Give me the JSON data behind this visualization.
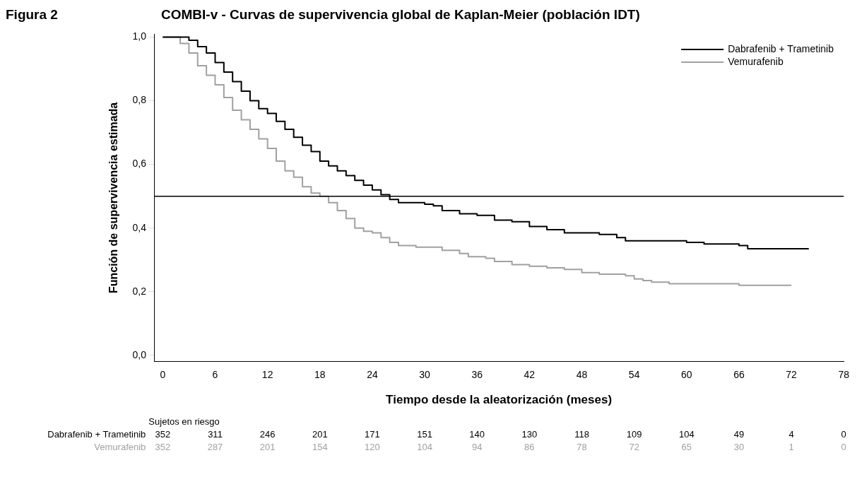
{
  "chart_data": {
    "type": "step",
    "title": "Figura 2",
    "subtitle": "COMBI-v - Curvas de supervivencia global de Kaplan-Meier (población IDT)",
    "xlabel": "Tiempo desde la aleatorización (meses)",
    "ylabel": "Función de supervivencia estimada",
    "xlim": [
      -1,
      78
    ],
    "xticks": [
      0,
      6,
      12,
      18,
      24,
      30,
      36,
      42,
      48,
      54,
      60,
      66,
      72,
      78
    ],
    "ylim": [
      -0.02,
      1.01
    ],
    "yticks": [
      {
        "value": 0,
        "label": "0,0"
      },
      {
        "value": 0.2,
        "label": "0,2"
      },
      {
        "value": 0.4,
        "label": "0,4"
      },
      {
        "value": 0.6,
        "label": "0,6"
      },
      {
        "value": 0.8,
        "label": "0,8"
      },
      {
        "value": 1,
        "label": "1,0"
      }
    ],
    "grid": false,
    "legend": "top right",
    "marker": "none",
    "line_style": "solid",
    "ref_lines": [
      {
        "axis": "y",
        "value": 0.5,
        "color": "#000000"
      }
    ],
    "series": [
      {
        "name": "Dabrafenib + Trametinib",
        "color": "#000000",
        "x": [
          0,
          3,
          4,
          5,
          6,
          7,
          8,
          9,
          10,
          11,
          12,
          13,
          14,
          15,
          16,
          17,
          18,
          19,
          20,
          21,
          22,
          23,
          24,
          25,
          26,
          27,
          30,
          31,
          32,
          34,
          36,
          38,
          40,
          42,
          44,
          46,
          50,
          52,
          53,
          60,
          62,
          66,
          67,
          74
        ],
        "values": [
          1,
          0.99,
          0.97,
          0.95,
          0.92,
          0.89,
          0.86,
          0.83,
          0.8,
          0.775,
          0.76,
          0.735,
          0.71,
          0.685,
          0.66,
          0.64,
          0.61,
          0.595,
          0.58,
          0.565,
          0.55,
          0.535,
          0.52,
          0.505,
          0.49,
          0.48,
          0.475,
          0.47,
          0.455,
          0.445,
          0.44,
          0.425,
          0.42,
          0.405,
          0.395,
          0.385,
          0.38,
          0.37,
          0.36,
          0.355,
          0.35,
          0.345,
          0.335,
          0.335
        ]
      },
      {
        "name": "Vemurafenib",
        "color": "#a0a0a0",
        "x": [
          0,
          2,
          3,
          4,
          5,
          6,
          7,
          8,
          9,
          10,
          11,
          12,
          13,
          14,
          15,
          16,
          17,
          18,
          19,
          20,
          21,
          22,
          23,
          24,
          25,
          26,
          27,
          29,
          32,
          34,
          35,
          37,
          38,
          40,
          42,
          44,
          46,
          48,
          50,
          53,
          54,
          55,
          56,
          58,
          66,
          72
        ],
        "values": [
          1,
          0.98,
          0.95,
          0.91,
          0.88,
          0.85,
          0.81,
          0.77,
          0.74,
          0.71,
          0.68,
          0.65,
          0.61,
          0.58,
          0.56,
          0.53,
          0.51,
          0.5,
          0.48,
          0.455,
          0.43,
          0.4,
          0.39,
          0.385,
          0.37,
          0.355,
          0.345,
          0.34,
          0.33,
          0.32,
          0.31,
          0.305,
          0.295,
          0.285,
          0.28,
          0.275,
          0.27,
          0.26,
          0.255,
          0.25,
          0.24,
          0.235,
          0.23,
          0.225,
          0.22,
          0.22
        ]
      }
    ],
    "annotations": [
      "Sujetos en riesgo",
      "Dabrafenib + Trametinib",
      "352",
      "311",
      "246",
      "201",
      "171",
      "151",
      "140",
      "130",
      "118",
      "109",
      "104",
      "49",
      "4",
      "0",
      "Vemurafenib",
      "352",
      "287",
      "201",
      "154",
      "120",
      "104",
      "94",
      "86",
      "78",
      "72",
      "65",
      "30",
      "1",
      "0"
    ]
  }
}
